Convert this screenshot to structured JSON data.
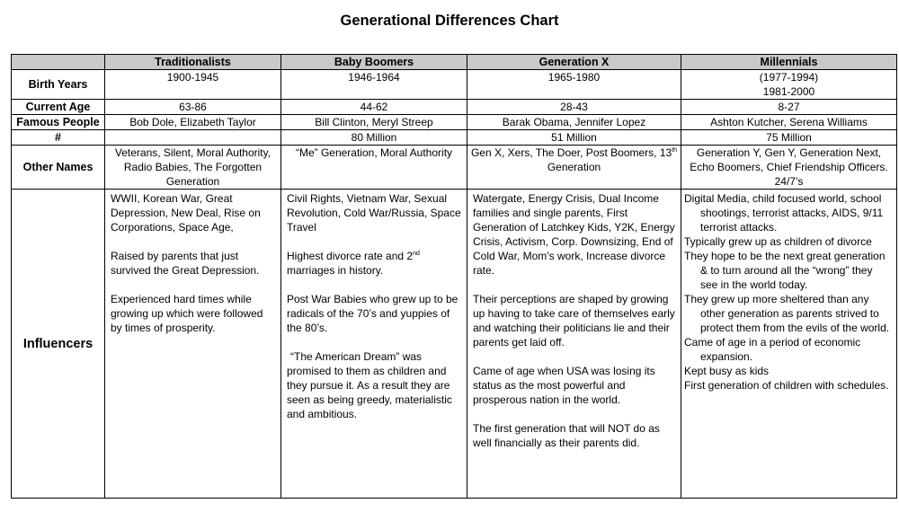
{
  "title": "Generational Differences Chart",
  "headers": [
    "",
    "Traditionalists",
    "Baby Boomers",
    "Generation X",
    "Millennials"
  ],
  "rows": {
    "birth_years": {
      "label": "Birth Years",
      "trad": "1900-1945",
      "boom": "1946-1964",
      "genx": "1965-1980",
      "mill_1": "(1977-1994)",
      "mill_2": "1981-2000"
    },
    "current_age": {
      "label": "Current Age",
      "trad": "63-86",
      "boom": "44-62",
      "genx": "28-43",
      "mill": "8-27"
    },
    "famous_people": {
      "label": "Famous People",
      "trad": "Bob Dole, Elizabeth Taylor",
      "boom": "Bill Clinton, Meryl Streep",
      "genx": "Barak Obama, Jennifer Lopez",
      "mill": "Ashton Kutcher, Serena Williams"
    },
    "count": {
      "label": "#",
      "trad": "",
      "boom": "80 Million",
      "genx": "51 Million",
      "mill": "75 Million"
    },
    "other_names": {
      "label": "Other Names",
      "trad": "Veterans, Silent, Moral Authority, Radio Babies, The Forgotten Generation",
      "boom": "“Me” Generation, Moral Authority",
      "genx_pre": "Gen X, Xers, The Doer, Post Boomers, 13",
      "genx_sup": "th",
      "genx_post": " Generation",
      "mill": "Generation Y, Gen Y, Generation Next, Echo Boomers, Chief Friendship Officers. 24/7’s"
    },
    "influencers": {
      "label": "Influencers",
      "trad": [
        "WWII, Korean War, Great Depression, New Deal, Rise on Corporations, Space Age,",
        "Raised by parents that just survived the Great Depression.",
        "Experienced hard times while growing up which were followed by times of prosperity."
      ],
      "boom_1": "Civil Rights, Vietnam War, Sexual Revolution, Cold War/Russia, Space Travel",
      "boom_2_pre": "Highest divorce rate and 2",
      "boom_2_sup": "nd",
      "boom_2_post": " marriages in history.",
      "boom_3": "Post War Babies who grew up to be radicals of the 70’s and yuppies of the 80’s.",
      "boom_4": "“The American Dream” was promised to them as children and they pursue it.  As a result they are seen as being greedy, materialistic and ambitious.",
      "genx": [
        "Watergate, Energy Crisis, Dual Income families and single parents, First Generation of Latchkey Kids, Y2K, Energy Crisis, Activism, Corp. Downsizing, End of Cold War, Mom’s work, Increase divorce rate.",
        "Their perceptions are shaped by growing up having to take care of themselves early and watching their politicians lie and their parents get laid off.",
        "Came of age when USA was losing its status as the most powerful and prosperous nation in the world.",
        "The first generation that will NOT do as well financially as their parents did."
      ],
      "mill": [
        "Digital Media, child focused world,  school shootings, terrorist attacks, AIDS, 9/11 terrorist attacks.",
        "Typically grew up as children of divorce",
        "They hope to be the next great generation & to  turn around all the “wrong” they see in the world today.",
        "They grew up more sheltered than any other generation as parents strived to protect them from the evils of the world.",
        "Came of age in a period of economic expansion.",
        "Kept busy as kids",
        "First generation of children with schedules."
      ]
    }
  }
}
